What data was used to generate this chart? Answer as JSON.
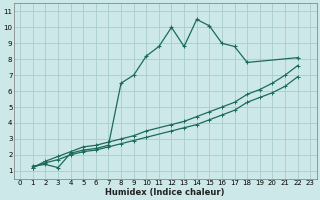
{
  "xlabel": "Humidex (Indice chaleur)",
  "bg_color": "#cde8e8",
  "grid_color": "#aacccc",
  "line_color": "#1a6b5a",
  "xlim": [
    -0.5,
    23.5
  ],
  "ylim": [
    0.5,
    11.5
  ],
  "xticks": [
    0,
    1,
    2,
    3,
    4,
    5,
    6,
    7,
    8,
    9,
    10,
    11,
    12,
    13,
    14,
    15,
    16,
    17,
    18,
    19,
    20,
    21,
    22,
    23
  ],
  "yticks": [
    1,
    2,
    3,
    4,
    5,
    6,
    7,
    8,
    9,
    10,
    11
  ],
  "line1_x": [
    1,
    2,
    3,
    4,
    5,
    6,
    7,
    8,
    9,
    10,
    11,
    12,
    13,
    14,
    15,
    16,
    17,
    18,
    22
  ],
  "line1_y": [
    1.3,
    1.4,
    1.2,
    2.1,
    2.3,
    2.4,
    2.6,
    6.5,
    7.0,
    8.2,
    8.8,
    10.0,
    8.8,
    10.5,
    10.1,
    9.0,
    8.8,
    7.8,
    8.1
  ],
  "line2_x": [
    1,
    2,
    3,
    4,
    5,
    6,
    7,
    8,
    9,
    10,
    12,
    13,
    14,
    15,
    16,
    17,
    18,
    19,
    20,
    21,
    22
  ],
  "line2_y": [
    1.2,
    1.6,
    1.9,
    2.2,
    2.5,
    2.6,
    2.8,
    3.0,
    3.2,
    3.5,
    3.9,
    4.1,
    4.4,
    4.7,
    5.0,
    5.3,
    5.8,
    6.1,
    6.5,
    7.0,
    7.6
  ],
  "line3_x": [
    1,
    2,
    3,
    4,
    5,
    6,
    7,
    8,
    9,
    10,
    12,
    13,
    14,
    15,
    16,
    17,
    18,
    19,
    20,
    21,
    22
  ],
  "line3_y": [
    1.2,
    1.5,
    1.7,
    2.0,
    2.2,
    2.3,
    2.5,
    2.7,
    2.9,
    3.1,
    3.5,
    3.7,
    3.9,
    4.2,
    4.5,
    4.8,
    5.3,
    5.6,
    5.9,
    6.3,
    6.9
  ]
}
